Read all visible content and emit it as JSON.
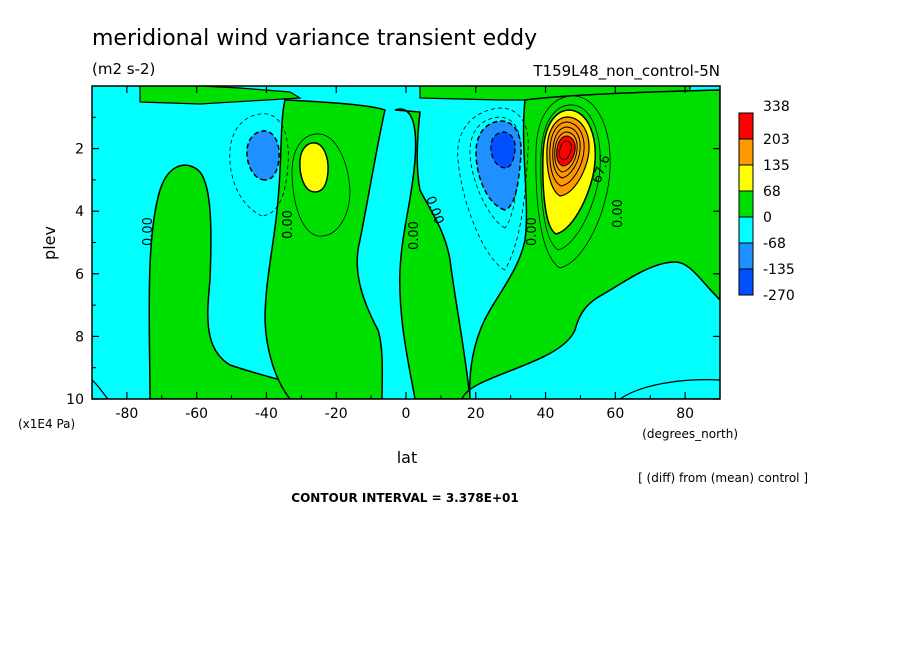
{
  "chart_data": {
    "type": "heatmap",
    "title": "meridional wind variance transient eddy",
    "units": "(m2 s-2)",
    "run_label": "T159L48_non_control-5N",
    "xlabel": "lat",
    "ylabel": "plev",
    "x_unit": "(degrees_north)",
    "y_unit": "(x1E4 Pa)",
    "xlim": [
      -90,
      90
    ],
    "ylim": [
      10,
      0
    ],
    "x_ticks": [
      "-80",
      "-60",
      "-40",
      "-20",
      "0",
      "20",
      "40",
      "60",
      "80"
    ],
    "y_ticks": [
      "2",
      "4",
      "6",
      "8",
      "10"
    ],
    "note": "[ (diff) from (mean) control ]",
    "contour_interval": "CONTOUR INTERVAL = 3.378E+01",
    "contour_labels": [
      "0.00",
      "0.00",
      "0.00",
      "0.00",
      "0.00",
      "0.00",
      "67.6"
    ],
    "legend": {
      "labels": [
        "338",
        "203",
        "135",
        "68",
        "0",
        "-68",
        "-135",
        "-270"
      ],
      "colors": [
        "#ff0000",
        "#ff9900",
        "#ffff00",
        "#00e000",
        "#00ffff",
        "#1e90ff",
        "#0050ff"
      ]
    },
    "features": [
      {
        "kind": "minimum",
        "lat": -40,
        "plev": 2.3,
        "value": -135
      },
      {
        "kind": "maximum",
        "lat": -27,
        "plev": 2.5,
        "value": 68
      },
      {
        "kind": "minimum",
        "lat": 28,
        "plev": 2.2,
        "value": -203
      },
      {
        "kind": "maximum",
        "lat": 44,
        "plev": 2.1,
        "value": 338
      }
    ]
  }
}
